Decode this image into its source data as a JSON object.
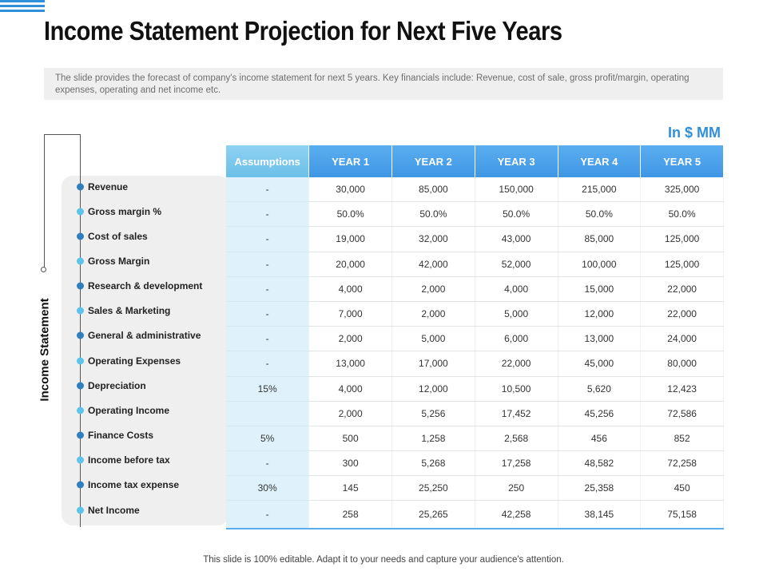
{
  "title": "Income Statement Projection for Next Five Years",
  "description": "The slide provides the forecast of company's income statement for next 5 years. Key financials include: Revenue, cost of sale, gross profit/margin, operating expenses, operating and net income etc.",
  "unit": "In $ MM",
  "side_label": "Income Statement",
  "colors": {
    "accent": "#2f8fd8",
    "dot_dark": "#2f7fbf",
    "dot_light": "#5cc3ea"
  },
  "table": {
    "headers": [
      "Assumptions",
      "YEAR 1",
      "YEAR 2",
      "YEAR 3",
      "YEAR 4",
      "YEAR 5"
    ],
    "rows": [
      {
        "label": "Revenue",
        "cells": [
          "-",
          "30,000",
          "85,000",
          "150,000",
          "215,000",
          "325,000"
        ]
      },
      {
        "label": "Gross margin %",
        "cells": [
          "-",
          "50.0%",
          "50.0%",
          "50.0%",
          "50.0%",
          "50.0%"
        ]
      },
      {
        "label": "Cost of sales",
        "cells": [
          "-",
          "19,000",
          "32,000",
          "43,000",
          "85,000",
          "125,000"
        ]
      },
      {
        "label": "Gross Margin",
        "cells": [
          "-",
          "20,000",
          "42,000",
          "52,000",
          "100,000",
          "125,000"
        ]
      },
      {
        "label": "Research & development",
        "cells": [
          "-",
          "4,000",
          "2,000",
          "4,000",
          "15,000",
          "22,000"
        ]
      },
      {
        "label": "Sales & Marketing",
        "cells": [
          "-",
          "7,000",
          "2,000",
          "5,000",
          "12,000",
          "22,000"
        ]
      },
      {
        "label": "General & administrative",
        "cells": [
          "-",
          "2,000",
          "5,000",
          "6,000",
          "13,000",
          "24,000"
        ]
      },
      {
        "label": "Operating Expenses",
        "cells": [
          "-",
          "13,000",
          "17,000",
          "22,000",
          "45,000",
          "80,000"
        ]
      },
      {
        "label": "Depreciation",
        "cells": [
          "15%",
          "4,000",
          "12,000",
          "10,500",
          "5,620",
          "12,423"
        ]
      },
      {
        "label": "Operating Income",
        "cells": [
          "",
          "2,000",
          "5,256",
          "17,452",
          "45,256",
          "72,586"
        ]
      },
      {
        "label": "Finance Costs",
        "cells": [
          "5%",
          "500",
          "1,258",
          "2,568",
          "456",
          "852"
        ]
      },
      {
        "label": "Income before tax",
        "cells": [
          "-",
          "300",
          "5,268",
          "17,258",
          "48,582",
          "72,258"
        ]
      },
      {
        "label": "Income tax expense",
        "cells": [
          "30%",
          "145",
          "25,250",
          "250",
          "25,358",
          "450"
        ]
      },
      {
        "label": "Net Income",
        "cells": [
          "-",
          "258",
          "25,265",
          "42,258",
          "38,145",
          "75,158"
        ]
      }
    ]
  },
  "footer": "This slide is 100% editable. Adapt it to your needs and capture your audience's attention."
}
